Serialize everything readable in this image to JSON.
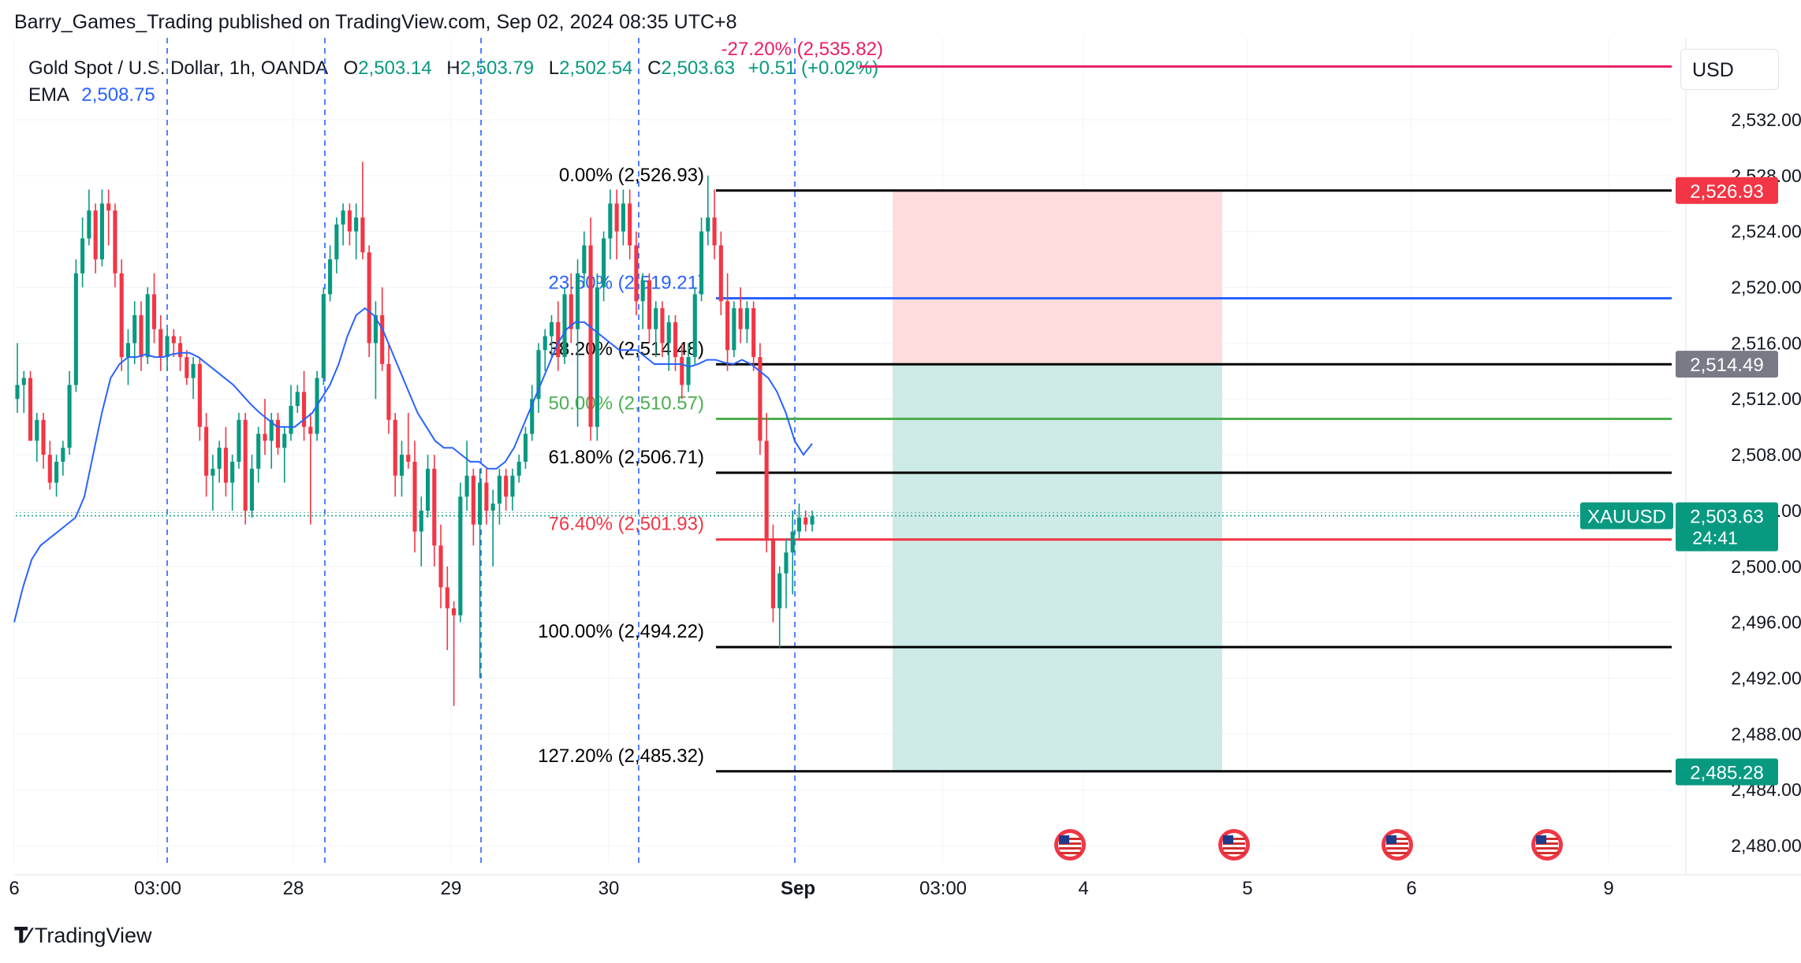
{
  "header": {
    "publisher": "Barry_Games_Trading published on TradingView.com, Sep 02, 2024 08:35 UTC+8"
  },
  "legend": {
    "symbol": "Gold Spot / U.S. Dollar, 1h, OANDA",
    "o_label": "O",
    "o_value": "2,503.14",
    "h_label": "H",
    "h_value": "2,503.79",
    "l_label": "L",
    "l_value": "2,502.54",
    "c_label": "C",
    "c_value": "2,503.63",
    "change": "+0.51 (+0.02%)",
    "ema_label": "EMA",
    "ema_value": "2,508.75"
  },
  "currency": "USD",
  "footer": {
    "brand": "TradingView"
  },
  "colors": {
    "up": "#089981",
    "down": "#f23645",
    "ema": "#2962ff",
    "fib_black": "#000000",
    "fib_blue": "#2962ff",
    "fib_green": "#4caf50",
    "fib_red": "#f23645",
    "fib_ext": "#e91e63",
    "stop_zone": "#fcdcdc",
    "target_zone": "#cdeae6",
    "separator": "#2962ff"
  },
  "chart_data": {
    "type": "candlestick",
    "title": "Gold Spot / U.S. Dollar, 1h, OANDA",
    "ylim": [
      2478.5,
      2540
    ],
    "y_ticks": [
      "2,532.00",
      "2,528.00",
      "2,524.00",
      "2,520.00",
      "2,516.00",
      "2,512.00",
      "2,508.00",
      "2,504.00",
      "2,500.00",
      "2,496.00",
      "2,492.00",
      "2,488.00",
      "2,484.00",
      "2,480.00"
    ],
    "x_ticks": [
      "6",
      "03:00",
      "28",
      "29",
      "30",
      "Sep",
      "03:00",
      "4",
      "5",
      "6",
      "9"
    ],
    "grid": true,
    "fib_levels": [
      {
        "label": "-27.20% (2,535.82)",
        "price": 2535.82,
        "color": "#e91e63"
      },
      {
        "label": "0.00% (2,526.93)",
        "price": 2526.93,
        "color": "#000000"
      },
      {
        "label": "23.60% (2,519.21)",
        "price": 2519.21,
        "color": "#2962ff"
      },
      {
        "label": "38.20% (2,514.48)",
        "price": 2514.48,
        "color": "#000000"
      },
      {
        "label": "50.00% (2,510.57)",
        "price": 2510.57,
        "color": "#4caf50"
      },
      {
        "label": "61.80% (2,506.71)",
        "price": 2506.71,
        "color": "#000000"
      },
      {
        "label": "76.40% (2,501.93)",
        "price": 2501.93,
        "color": "#f23645"
      },
      {
        "label": "100.00% (2,494.22)",
        "price": 2494.22,
        "color": "#000000"
      },
      {
        "label": "127.20% (2,485.32)",
        "price": 2485.32,
        "color": "#000000"
      }
    ],
    "price_labels": [
      {
        "text": "2,526.93",
        "price": 2526.93,
        "bg": "#f23645"
      },
      {
        "text": "2,514.49",
        "price": 2514.49,
        "bg": "#787b86"
      },
      {
        "text": "2,485.28",
        "price": 2485.28,
        "bg": "#089981"
      }
    ],
    "last_price": {
      "symbol": "XAUUSD",
      "text": "2,503.63",
      "price": 2503.63,
      "countdown": "24:41"
    },
    "position": {
      "stop": 2526.93,
      "entry": 2514.49,
      "target": 2485.28
    },
    "candles": [
      [
        2512.0,
        2516.0,
        2511.0,
        2513.0
      ],
      [
        2513.0,
        2514.0,
        2511.0,
        2513.5
      ],
      [
        2513.5,
        2514.0,
        2509.0,
        2509.0
      ],
      [
        2509.0,
        2511.0,
        2507.5,
        2510.5
      ],
      [
        2510.5,
        2511.0,
        2507.0,
        2508.0
      ],
      [
        2508.0,
        2509.0,
        2505.5,
        2506.0
      ],
      [
        2506.0,
        2508.0,
        2505.0,
        2507.5
      ],
      [
        2507.5,
        2509.0,
        2506.5,
        2508.5
      ],
      [
        2508.5,
        2514.0,
        2508.0,
        2513.0
      ],
      [
        2513.0,
        2522.0,
        2512.5,
        2521.0
      ],
      [
        2521.0,
        2525.0,
        2520.0,
        2523.5
      ],
      [
        2523.5,
        2527.0,
        2523.0,
        2525.5
      ],
      [
        2525.5,
        2526.0,
        2521.0,
        2522.0
      ],
      [
        2522.0,
        2527.0,
        2521.5,
        2526.0
      ],
      [
        2526.0,
        2527.0,
        2523.0,
        2525.5
      ],
      [
        2525.5,
        2526.0,
        2520.0,
        2521.0
      ],
      [
        2521.0,
        2522.0,
        2514.0,
        2515.0
      ],
      [
        2515.0,
        2517.0,
        2513.0,
        2516.0
      ],
      [
        2516.0,
        2519.0,
        2514.5,
        2518.0
      ],
      [
        2518.0,
        2519.0,
        2514.0,
        2515.0
      ],
      [
        2515.0,
        2520.0,
        2514.5,
        2519.5
      ],
      [
        2519.5,
        2521.0,
        2516.0,
        2517.0
      ],
      [
        2517.0,
        2518.0,
        2514.0,
        2515.0
      ],
      [
        2515.0,
        2517.0,
        2514.0,
        2516.5
      ],
      [
        2516.5,
        2517.0,
        2515.0,
        2516.0
      ],
      [
        2516.0,
        2516.5,
        2514.0,
        2515.0
      ],
      [
        2515.0,
        2515.5,
        2513.0,
        2513.5
      ],
      [
        2513.5,
        2515.0,
        2512.0,
        2514.5
      ],
      [
        2514.5,
        2515.0,
        2509.0,
        2510.0
      ],
      [
        2510.0,
        2511.0,
        2505.0,
        2506.5
      ],
      [
        2506.5,
        2508.0,
        2504.0,
        2507.0
      ],
      [
        2507.0,
        2509.0,
        2506.0,
        2508.5
      ],
      [
        2508.5,
        2510.0,
        2505.0,
        2506.0
      ],
      [
        2506.0,
        2508.0,
        2504.0,
        2507.5
      ],
      [
        2507.5,
        2511.0,
        2507.0,
        2510.5
      ],
      [
        2510.5,
        2511.0,
        2503.0,
        2504.0
      ],
      [
        2504.0,
        2508.0,
        2503.5,
        2507.0
      ],
      [
        2507.0,
        2510.0,
        2506.0,
        2509.5
      ],
      [
        2509.5,
        2512.0,
        2508.0,
        2509.0
      ],
      [
        2509.0,
        2511.0,
        2507.0,
        2510.5
      ],
      [
        2510.5,
        2511.0,
        2508.0,
        2508.5
      ],
      [
        2508.5,
        2510.0,
        2506.0,
        2509.5
      ],
      [
        2509.5,
        2513.0,
        2509.0,
        2511.5
      ],
      [
        2511.5,
        2513.0,
        2511.0,
        2512.5
      ],
      [
        2512.5,
        2514.0,
        2509.0,
        2510.0
      ],
      [
        2510.0,
        2511.0,
        2503.0,
        2509.5
      ],
      [
        2509.5,
        2514.0,
        2509.0,
        2513.5
      ],
      [
        2513.5,
        2520.0,
        2513.0,
        2519.5
      ],
      [
        2519.5,
        2523.0,
        2519.0,
        2522.0
      ],
      [
        2522.0,
        2525.0,
        2521.0,
        2524.5
      ],
      [
        2524.5,
        2526.0,
        2523.0,
        2525.5
      ],
      [
        2525.5,
        2526.0,
        2523.0,
        2524.0
      ],
      [
        2524.0,
        2526.0,
        2522.0,
        2525.0
      ],
      [
        2525.0,
        2529.0,
        2522.0,
        2522.5
      ],
      [
        2522.5,
        2523.0,
        2515.0,
        2516.0
      ],
      [
        2516.0,
        2519.0,
        2512.0,
        2518.0
      ],
      [
        2518.0,
        2520.0,
        2514.0,
        2514.5
      ],
      [
        2514.5,
        2516.0,
        2509.5,
        2510.5
      ],
      [
        2510.5,
        2511.0,
        2505.0,
        2506.5
      ],
      [
        2506.5,
        2509.0,
        2505.0,
        2508.0
      ],
      [
        2508.0,
        2511.0,
        2507.0,
        2507.5
      ],
      [
        2507.5,
        2509.0,
        2501.0,
        2502.5
      ],
      [
        2502.5,
        2505.0,
        2500.0,
        2504.0
      ],
      [
        2504.0,
        2508.0,
        2503.5,
        2507.0
      ],
      [
        2507.0,
        2508.0,
        2500.0,
        2501.5
      ],
      [
        2501.5,
        2503.0,
        2497.0,
        2498.5
      ],
      [
        2498.5,
        2500.0,
        2494.0,
        2497.0
      ],
      [
        2497.0,
        2497.5,
        2490.0,
        2496.5
      ],
      [
        2496.5,
        2506.0,
        2496.0,
        2505.0
      ],
      [
        2505.0,
        2509.0,
        2504.0,
        2506.5
      ],
      [
        2506.5,
        2507.0,
        2501.5,
        2503.0
      ],
      [
        2503.0,
        2507.0,
        2492.0,
        2506.0
      ],
      [
        2506.0,
        2507.0,
        2503.0,
        2504.0
      ],
      [
        2504.0,
        2505.5,
        2500.0,
        2504.5
      ],
      [
        2504.5,
        2507.0,
        2503.0,
        2506.5
      ],
      [
        2506.5,
        2507.0,
        2504.0,
        2505.0
      ],
      [
        2505.0,
        2507.0,
        2504.0,
        2506.5
      ],
      [
        2506.5,
        2508.0,
        2506.0,
        2507.5
      ],
      [
        2507.5,
        2510.0,
        2507.0,
        2509.5
      ],
      [
        2509.5,
        2513.0,
        2509.0,
        2512.0
      ],
      [
        2512.0,
        2516.0,
        2511.0,
        2515.5
      ],
      [
        2515.5,
        2517.0,
        2514.0,
        2516.5
      ],
      [
        2516.5,
        2518.0,
        2515.0,
        2517.5
      ],
      [
        2517.5,
        2519.0,
        2514.0,
        2515.0
      ],
      [
        2515.0,
        2520.0,
        2514.5,
        2519.5
      ],
      [
        2519.5,
        2521.0,
        2516.0,
        2517.0
      ],
      [
        2517.0,
        2522.0,
        2510.0,
        2521.0
      ],
      [
        2521.0,
        2524.0,
        2520.0,
        2523.0
      ],
      [
        2523.0,
        2525.0,
        2509.0,
        2510.0
      ],
      [
        2510.0,
        2521.0,
        2509.0,
        2520.0
      ],
      [
        2520.0,
        2524.0,
        2519.0,
        2523.5
      ],
      [
        2523.5,
        2527.0,
        2522.0,
        2526.0
      ],
      [
        2526.0,
        2527.0,
        2522.0,
        2524.0
      ],
      [
        2524.0,
        2527.0,
        2523.0,
        2526.0
      ],
      [
        2526.0,
        2527.0,
        2522.0,
        2523.0
      ],
      [
        2523.0,
        2524.0,
        2518.0,
        2519.0
      ],
      [
        2519.0,
        2521.0,
        2517.0,
        2520.5
      ],
      [
        2520.5,
        2521.0,
        2516.0,
        2517.0
      ],
      [
        2517.0,
        2519.0,
        2515.0,
        2518.5
      ],
      [
        2518.5,
        2519.0,
        2515.0,
        2516.0
      ],
      [
        2516.0,
        2518.0,
        2514.0,
        2517.5
      ],
      [
        2517.5,
        2518.0,
        2514.0,
        2515.0
      ],
      [
        2515.0,
        2516.0,
        2512.0,
        2513.0
      ],
      [
        2513.0,
        2516.0,
        2512.5,
        2515.0
      ],
      [
        2515.0,
        2520.0,
        2514.5,
        2519.5
      ],
      [
        2519.5,
        2525.0,
        2519.0,
        2524.0
      ],
      [
        2524.0,
        2528.0,
        2523.0,
        2525.0
      ],
      [
        2525.0,
        2527.0,
        2522.0,
        2523.0
      ],
      [
        2523.0,
        2524.0,
        2518.0,
        2519.0
      ],
      [
        2519.0,
        2521.0,
        2514.0,
        2515.5
      ],
      [
        2515.5,
        2519.0,
        2515.0,
        2518.5
      ],
      [
        2518.5,
        2520.0,
        2516.0,
        2517.0
      ],
      [
        2517.0,
        2519.0,
        2516.0,
        2518.5
      ],
      [
        2518.5,
        2519.0,
        2514.0,
        2515.0
      ],
      [
        2515.0,
        2516.0,
        2508.0,
        2509.0
      ],
      [
        2509.0,
        2511.0,
        2501.0,
        2502.0
      ],
      [
        2502.0,
        2503.0,
        2496.0,
        2497.0
      ],
      [
        2497.0,
        2500.0,
        2494.2,
        2499.5
      ],
      [
        2499.5,
        2502.0,
        2497.0,
        2501.0
      ],
      [
        2501.0,
        2504.0,
        2498.0,
        2502.5
      ],
      [
        2502.5,
        2504.5,
        2502.0,
        2503.5
      ],
      [
        2503.5,
        2504.0,
        2502.5,
        2503.0
      ],
      [
        2503.0,
        2504.0,
        2502.5,
        2503.6
      ]
    ],
    "ema": [
      2496.0,
      2498.5,
      2500.5,
      2501.5,
      2502.0,
      2502.5,
      2503.0,
      2503.5,
      2505.0,
      2508.0,
      2511.0,
      2513.5,
      2514.5,
      2515.0,
      2515.0,
      2515.2,
      2515.0,
      2515.0,
      2515.2,
      2515.3,
      2515.3,
      2515.0,
      2514.5,
      2514.0,
      2513.5,
      2513.0,
      2512.3,
      2511.6,
      2511.0,
      2510.5,
      2510.0,
      2510.0,
      2510.0,
      2510.5,
      2511.0,
      2512.0,
      2513.0,
      2514.5,
      2516.5,
      2518.0,
      2518.5,
      2518.0,
      2517.0,
      2515.5,
      2514.0,
      2512.5,
      2511.0,
      2510.0,
      2509.0,
      2508.5,
      2508.5,
      2508.0,
      2507.5,
      2507.5,
      2507.0,
      2507.0,
      2507.5,
      2508.5,
      2510.0,
      2511.5,
      2513.0,
      2514.5,
      2516.0,
      2517.0,
      2517.5,
      2517.5,
      2517.0,
      2516.5,
      2516.0,
      2515.5,
      2515.5,
      2515.5,
      2515.0,
      2514.5,
      2514.5,
      2514.5,
      2514.5,
      2514.3,
      2514.5,
      2514.8,
      2514.8,
      2514.6,
      2514.5,
      2514.8,
      2514.5,
      2514.0,
      2513.5,
      2512.5,
      2511.0,
      2509.0,
      2508.0,
      2508.8
    ]
  }
}
